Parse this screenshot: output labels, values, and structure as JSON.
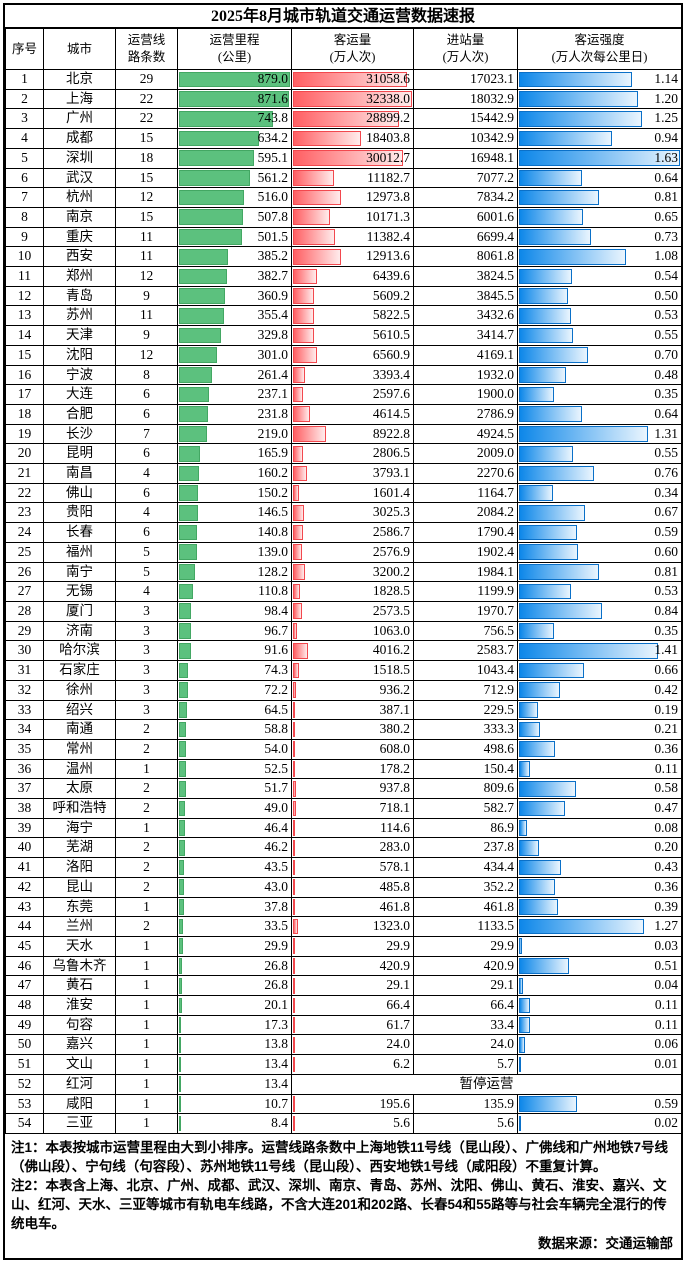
{
  "title": "2025年8月城市轨道交通运营数据速报",
  "columns": [
    {
      "line1": "序号",
      "line2": ""
    },
    {
      "line1": "城市",
      "line2": ""
    },
    {
      "line1": "运营线",
      "line2": "路条数"
    },
    {
      "line1": "运营里程",
      "line2": "(公里)"
    },
    {
      "line1": "客运量",
      "line2": "(万人次)"
    },
    {
      "line1": "进站量",
      "line2": "(万人次)"
    },
    {
      "line1": "客运强度",
      "line2": "(万人次每公里日)"
    }
  ],
  "notes": {
    "note1": "注1：本表按城市运营里程由大到小排序。运营线路条数中上海地铁11号线（昆山段）、广佛线和广州地铁7号线（佛山段）、宁句线（句容段）、苏州地铁11号线（昆山段）、西安地铁1号线（咸阳段）不重复计算。",
    "note2": "注2：本表含上海、北京、广州、成都、武汉、深圳、南京、青岛、苏州、沈阳、佛山、黄石、淮安、嘉兴、文山、红河、天水、三亚等城市有轨电车线路，不含大连201和202路、长春54和55路等与社会车辆完全混行的传统电车。",
    "source": "数据来源：交通运输部"
  },
  "colors": {
    "mileage_bar_fill": "#5cc17e",
    "mileage_bar_border": "#43a763",
    "volume_bar_gradient_start": "#ff5f63",
    "volume_bar_gradient_end": "#ffecec",
    "volume_bar_border": "#f2484e",
    "intensity_bar_gradient_start": "#0d87e9",
    "intensity_bar_gradient_end": "#eaf5fe",
    "intensity_bar_border": "#0a70c8"
  },
  "chart_data": {
    "type": "table",
    "title": "2025年8月城市轨道交通运营数据速报",
    "columns": [
      "序号",
      "城市",
      "运营线路条数",
      "运营里程(公里)",
      "客运量(万人次)",
      "进站量(万人次)",
      "客运强度(万人次每公里日)"
    ],
    "bar_columns": {
      "运营里程(公里)": {
        "style": "solid-green",
        "max": 879.0,
        "scale_from": 0
      },
      "客运量(万人次)": {
        "style": "gradient-red",
        "max": 32338.0,
        "scale_from": 0
      },
      "客运强度(万人次每公里日)": {
        "style": "gradient-blue",
        "max": 1.63,
        "scale_from": 0
      }
    },
    "suspended_label": "暂停运营",
    "rows": [
      [
        "1",
        "北京",
        "29",
        "879.0",
        "31058.6",
        "17023.1",
        "1.14"
      ],
      [
        "2",
        "上海",
        "22",
        "871.6",
        "32338.0",
        "18032.9",
        "1.20"
      ],
      [
        "3",
        "广州",
        "22",
        "743.8",
        "28899.2",
        "15442.9",
        "1.25"
      ],
      [
        "4",
        "成都",
        "15",
        "634.2",
        "18403.8",
        "10342.9",
        "0.94"
      ],
      [
        "5",
        "深圳",
        "18",
        "595.1",
        "30012.7",
        "16948.1",
        "1.63"
      ],
      [
        "6",
        "武汉",
        "15",
        "561.2",
        "11182.7",
        "7077.2",
        "0.64"
      ],
      [
        "7",
        "杭州",
        "12",
        "516.0",
        "12973.8",
        "7834.2",
        "0.81"
      ],
      [
        "8",
        "南京",
        "15",
        "507.8",
        "10171.3",
        "6001.6",
        "0.65"
      ],
      [
        "9",
        "重庆",
        "11",
        "501.5",
        "11382.4",
        "6699.4",
        "0.73"
      ],
      [
        "10",
        "西安",
        "11",
        "385.2",
        "12913.6",
        "8061.8",
        "1.08"
      ],
      [
        "11",
        "郑州",
        "12",
        "382.7",
        "6439.6",
        "3824.5",
        "0.54"
      ],
      [
        "12",
        "青岛",
        "9",
        "360.9",
        "5609.2",
        "3845.5",
        "0.50"
      ],
      [
        "13",
        "苏州",
        "11",
        "355.4",
        "5822.5",
        "3432.6",
        "0.53"
      ],
      [
        "14",
        "天津",
        "9",
        "329.8",
        "5610.5",
        "3414.7",
        "0.55"
      ],
      [
        "15",
        "沈阳",
        "12",
        "301.0",
        "6560.9",
        "4169.1",
        "0.70"
      ],
      [
        "16",
        "宁波",
        "8",
        "261.4",
        "3393.4",
        "1932.0",
        "0.48"
      ],
      [
        "17",
        "大连",
        "6",
        "237.1",
        "2597.6",
        "1900.0",
        "0.35"
      ],
      [
        "18",
        "合肥",
        "6",
        "231.8",
        "4614.5",
        "2786.9",
        "0.64"
      ],
      [
        "19",
        "长沙",
        "7",
        "219.0",
        "8922.8",
        "4924.5",
        "1.31"
      ],
      [
        "20",
        "昆明",
        "6",
        "165.9",
        "2806.5",
        "2009.0",
        "0.55"
      ],
      [
        "21",
        "南昌",
        "4",
        "160.2",
        "3793.1",
        "2270.6",
        "0.76"
      ],
      [
        "22",
        "佛山",
        "6",
        "150.2",
        "1601.4",
        "1164.7",
        "0.34"
      ],
      [
        "23",
        "贵阳",
        "4",
        "146.5",
        "3025.3",
        "2084.2",
        "0.67"
      ],
      [
        "24",
        "长春",
        "6",
        "140.8",
        "2586.7",
        "1790.4",
        "0.59"
      ],
      [
        "25",
        "福州",
        "5",
        "139.0",
        "2576.9",
        "1902.4",
        "0.60"
      ],
      [
        "26",
        "南宁",
        "5",
        "128.2",
        "3200.2",
        "1984.1",
        "0.81"
      ],
      [
        "27",
        "无锡",
        "4",
        "110.8",
        "1828.5",
        "1199.9",
        "0.53"
      ],
      [
        "28",
        "厦门",
        "3",
        "98.4",
        "2573.5",
        "1970.7",
        "0.84"
      ],
      [
        "29",
        "济南",
        "3",
        "96.7",
        "1063.0",
        "756.5",
        "0.35"
      ],
      [
        "30",
        "哈尔滨",
        "3",
        "91.6",
        "4016.2",
        "2583.7",
        "1.41"
      ],
      [
        "31",
        "石家庄",
        "3",
        "74.3",
        "1518.5",
        "1043.4",
        "0.66"
      ],
      [
        "32",
        "徐州",
        "3",
        "72.2",
        "936.2",
        "712.9",
        "0.42"
      ],
      [
        "33",
        "绍兴",
        "3",
        "64.5",
        "387.1",
        "229.5",
        "0.19"
      ],
      [
        "34",
        "南通",
        "2",
        "58.8",
        "380.2",
        "333.3",
        "0.21"
      ],
      [
        "35",
        "常州",
        "2",
        "54.0",
        "608.0",
        "498.6",
        "0.36"
      ],
      [
        "36",
        "温州",
        "1",
        "52.5",
        "178.2",
        "150.4",
        "0.11"
      ],
      [
        "37",
        "太原",
        "2",
        "51.7",
        "937.8",
        "809.6",
        "0.58"
      ],
      [
        "38",
        "呼和浩特",
        "2",
        "49.0",
        "718.1",
        "582.7",
        "0.47"
      ],
      [
        "39",
        "海宁",
        "1",
        "46.4",
        "114.6",
        "86.9",
        "0.08"
      ],
      [
        "40",
        "芜湖",
        "2",
        "46.2",
        "283.0",
        "237.8",
        "0.20"
      ],
      [
        "41",
        "洛阳",
        "2",
        "43.5",
        "578.1",
        "434.4",
        "0.43"
      ],
      [
        "42",
        "昆山",
        "2",
        "43.0",
        "485.8",
        "352.2",
        "0.36"
      ],
      [
        "43",
        "东莞",
        "1",
        "37.8",
        "461.8",
        "461.8",
        "0.39"
      ],
      [
        "44",
        "兰州",
        "2",
        "33.5",
        "1323.0",
        "1133.5",
        "1.27"
      ],
      [
        "45",
        "天水",
        "1",
        "29.9",
        "29.9",
        "29.9",
        "0.03"
      ],
      [
        "46",
        "乌鲁木齐",
        "1",
        "26.8",
        "420.9",
        "420.9",
        "0.51"
      ],
      [
        "47",
        "黄石",
        "1",
        "26.8",
        "29.1",
        "29.1",
        "0.04"
      ],
      [
        "48",
        "淮安",
        "1",
        "20.1",
        "66.4",
        "66.4",
        "0.11"
      ],
      [
        "49",
        "句容",
        "1",
        "17.3",
        "61.7",
        "33.4",
        "0.11"
      ],
      [
        "50",
        "嘉兴",
        "1",
        "13.8",
        "24.0",
        "24.0",
        "0.06"
      ],
      [
        "51",
        "文山",
        "1",
        "13.4",
        "6.2",
        "5.7",
        "0.01"
      ],
      [
        "52",
        "红河",
        "1",
        "13.4",
        null,
        null,
        null
      ],
      [
        "53",
        "咸阳",
        "1",
        "10.7",
        "195.6",
        "135.9",
        "0.59"
      ],
      [
        "54",
        "三亚",
        "1",
        "8.4",
        "5.6",
        "5.6",
        "0.02"
      ]
    ]
  }
}
